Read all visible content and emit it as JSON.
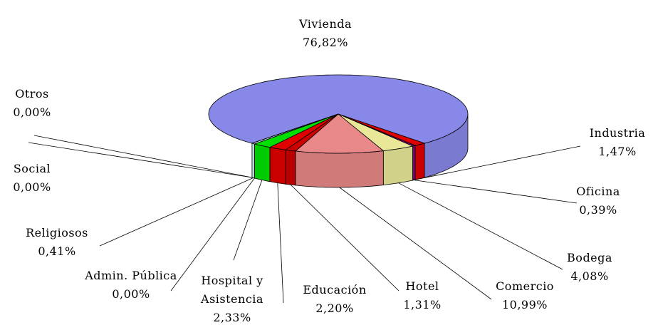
{
  "chart_data": {
    "type": "pie",
    "categories": [
      "Vivienda",
      "Industria",
      "Oficina",
      "Bodega",
      "Comercio",
      "Hotel",
      "Educación",
      "Hospital y Asistencia",
      "Admin. Pública",
      "Religiosos",
      "Social",
      "Otros"
    ],
    "values": [
      76.82,
      1.47,
      0.39,
      4.08,
      10.99,
      1.31,
      2.2,
      2.33,
      0.0,
      0.41,
      0.0,
      0.0
    ],
    "value_labels": [
      "76,82%",
      "1,47%",
      "0,39%",
      "4,08%",
      "10,99%",
      "1,31%",
      "2,20%",
      "2,33%",
      "0,00%",
      "0,41%",
      "0,00%",
      "0,00%"
    ],
    "colors": [
      "#8888e8",
      "#e00000",
      "#800080",
      "#e8e898",
      "#e88888",
      "#cc0000",
      "#e00000",
      "#00e000",
      "#ffffc0",
      "#c8eef0",
      "#a0a0ff",
      "#808080"
    ]
  }
}
